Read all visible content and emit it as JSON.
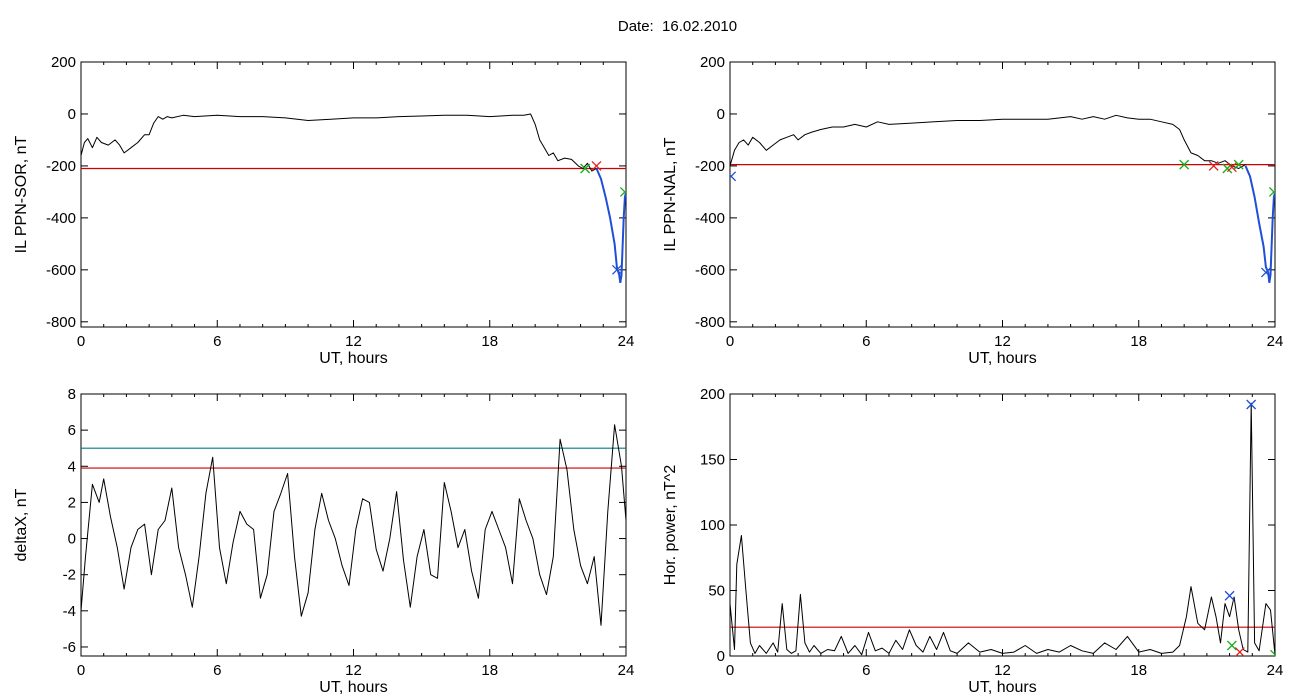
{
  "figure": {
    "title": "Date:  16.02.2010"
  },
  "colors": {
    "trace": "#000000",
    "threshold_red": "#cc0000",
    "threshold_teal": "#007c8c",
    "highlight_blue": "#1f4fd8",
    "marker_red": "#e02020",
    "marker_green": "#16b016",
    "marker_blue": "#1f4fd8"
  },
  "chart_data": [
    {
      "type": "line",
      "panel": "top-left",
      "xlabel": "UT, hours",
      "ylabel": "IL PPN-SOR, nT",
      "xlim": [
        0,
        24
      ],
      "ylim": [
        -820,
        200
      ],
      "xticks": [
        0,
        6,
        12,
        18,
        24
      ],
      "xtick_labels": [
        "0",
        "6",
        "12",
        "18",
        "24"
      ],
      "yticks": [
        200,
        0,
        -200,
        -400,
        -600,
        -800
      ],
      "ytick_labels": [
        "200",
        "0",
        "-200",
        "-400",
        "-600",
        "-800"
      ],
      "thresholds": [
        {
          "y": -210,
          "color": "red"
        }
      ],
      "series": [
        {
          "x": [
            0,
            0.15,
            0.3,
            0.5,
            0.7,
            0.9,
            1.2,
            1.5,
            1.7,
            1.9,
            2.2,
            2.5,
            2.8,
            3.0,
            3.2,
            3.4,
            3.6,
            3.8,
            4.0,
            4.5,
            5,
            6,
            7,
            8,
            9,
            10,
            11,
            12,
            13,
            14,
            15,
            16,
            17,
            18,
            19,
            19.5,
            19.8,
            20.0,
            20.2,
            20.4,
            20.6,
            20.8,
            21.0,
            21.3,
            21.6,
            21.9,
            22.1,
            22.3,
            22.5,
            22.7
          ],
          "y": [
            -160,
            -110,
            -95,
            -130,
            -90,
            -110,
            -120,
            -100,
            -120,
            -150,
            -130,
            -110,
            -80,
            -80,
            -35,
            -10,
            -20,
            -10,
            -15,
            -5,
            -10,
            -5,
            -10,
            -10,
            -15,
            -25,
            -20,
            -15,
            -15,
            -10,
            -8,
            -5,
            -5,
            -10,
            -5,
            -5,
            0,
            -40,
            -100,
            -130,
            -160,
            -150,
            -180,
            -170,
            -175,
            -200,
            -210,
            -190,
            -220,
            -210
          ]
        }
      ],
      "highlight": {
        "x": [
          22.7,
          22.9,
          23.1,
          23.3,
          23.5,
          23.6,
          23.7,
          23.75,
          23.8,
          23.9,
          23.95,
          24.0
        ],
        "y": [
          -210,
          -250,
          -320,
          -400,
          -500,
          -590,
          -620,
          -650,
          -620,
          -400,
          -320,
          -300
        ]
      },
      "markers": [
        {
          "x": 22.2,
          "y": -210,
          "color": "green"
        },
        {
          "x": 22.7,
          "y": -200,
          "color": "red"
        },
        {
          "x": 23.95,
          "y": -300,
          "color": "green"
        },
        {
          "x": 23.6,
          "y": -600,
          "color": "blue"
        }
      ]
    },
    {
      "type": "line",
      "panel": "top-right",
      "xlabel": "UT, hours",
      "ylabel": "IL PPN-NAL, nT",
      "xlim": [
        0,
        24
      ],
      "ylim": [
        -820,
        200
      ],
      "xticks": [
        0,
        6,
        12,
        18,
        24
      ],
      "xtick_labels": [
        "0",
        "6",
        "12",
        "18",
        "24"
      ],
      "yticks": [
        200,
        0,
        -200,
        -400,
        -600,
        -800
      ],
      "ytick_labels": [
        "200",
        "0",
        "-200",
        "-400",
        "-600",
        "-800"
      ],
      "thresholds": [
        {
          "y": -195,
          "color": "red"
        }
      ],
      "series": [
        {
          "x": [
            0,
            0.2,
            0.4,
            0.6,
            0.8,
            1.0,
            1.3,
            1.6,
            1.9,
            2.2,
            2.5,
            2.8,
            3.0,
            3.3,
            3.6,
            4.0,
            4.5,
            5.0,
            5.5,
            6.0,
            6.5,
            7.0,
            8.0,
            9.0,
            10.0,
            11.0,
            12.0,
            13.0,
            14.0,
            15.0,
            15.5,
            16.0,
            16.5,
            17.0,
            17.5,
            18.0,
            18.5,
            19.0,
            19.5,
            19.8,
            20.0,
            20.3,
            20.6,
            20.9,
            21.2,
            21.5,
            21.8,
            22.1,
            22.4,
            22.7
          ],
          "y": [
            -200,
            -140,
            -110,
            -100,
            -120,
            -90,
            -110,
            -140,
            -120,
            -100,
            -90,
            -80,
            -100,
            -80,
            -70,
            -60,
            -50,
            -50,
            -40,
            -50,
            -30,
            -40,
            -35,
            -30,
            -25,
            -25,
            -20,
            -20,
            -20,
            -10,
            -20,
            -10,
            -20,
            -5,
            -15,
            -20,
            -20,
            -30,
            -40,
            -60,
            -100,
            -150,
            -160,
            -180,
            -180,
            -190,
            -180,
            -200,
            -210,
            -195
          ]
        }
      ],
      "highlight": {
        "x": [
          22.7,
          22.9,
          23.1,
          23.3,
          23.5,
          23.6,
          23.7,
          23.75,
          23.8,
          23.9,
          23.95,
          24.0
        ],
        "y": [
          -200,
          -240,
          -320,
          -420,
          -510,
          -590,
          -610,
          -650,
          -620,
          -400,
          -320,
          -300
        ]
      },
      "markers": [
        {
          "x": 0.05,
          "y": -240,
          "color": "blue"
        },
        {
          "x": 20.0,
          "y": -195,
          "color": "green"
        },
        {
          "x": 21.3,
          "y": -200,
          "color": "red"
        },
        {
          "x": 21.9,
          "y": -210,
          "color": "green"
        },
        {
          "x": 22.1,
          "y": -205,
          "color": "red"
        },
        {
          "x": 22.4,
          "y": -195,
          "color": "green"
        },
        {
          "x": 23.95,
          "y": -300,
          "color": "green"
        },
        {
          "x": 23.6,
          "y": -610,
          "color": "blue"
        }
      ]
    },
    {
      "type": "line",
      "panel": "bottom-left",
      "xlabel": "UT, hours",
      "ylabel": "deltaX, nT",
      "xlim": [
        0,
        24
      ],
      "ylim": [
        -6.5,
        8
      ],
      "xticks": [
        0,
        6,
        12,
        18,
        24
      ],
      "xtick_labels": [
        "0",
        "6",
        "12",
        "18",
        "24"
      ],
      "yticks": [
        8,
        6,
        4,
        2,
        0,
        -2,
        -4,
        -6
      ],
      "ytick_labels": [
        "8",
        "6",
        "4",
        "2",
        "0",
        "-2",
        "-4",
        "-6"
      ],
      "thresholds": [
        {
          "y": 5,
          "color": "teal"
        },
        {
          "y": 3.9,
          "color": "red"
        }
      ],
      "series": [
        {
          "x": [
            0,
            0.2,
            0.5,
            0.8,
            1.0,
            1.3,
            1.6,
            1.9,
            2.2,
            2.5,
            2.8,
            3.1,
            3.4,
            3.7,
            4.0,
            4.3,
            4.6,
            4.9,
            5.2,
            5.5,
            5.8,
            6.1,
            6.4,
            6.7,
            7.0,
            7.3,
            7.6,
            7.9,
            8.2,
            8.5,
            8.8,
            9.1,
            9.4,
            9.7,
            10.0,
            10.3,
            10.6,
            10.9,
            11.2,
            11.5,
            11.8,
            12.1,
            12.4,
            12.7,
            13.0,
            13.3,
            13.6,
            13.9,
            14.2,
            14.5,
            14.8,
            15.1,
            15.4,
            15.7,
            16.0,
            16.3,
            16.6,
            16.9,
            17.2,
            17.5,
            17.8,
            18.1,
            18.4,
            18.7,
            19.0,
            19.3,
            19.6,
            19.9,
            20.2,
            20.5,
            20.8,
            21.1,
            21.4,
            21.7,
            22.0,
            22.3,
            22.6,
            22.9,
            23.2,
            23.5,
            23.8,
            24.0
          ],
          "y": [
            -4,
            -1,
            3.0,
            2.0,
            3.3,
            1.2,
            -0.5,
            -2.8,
            -0.5,
            0.5,
            0.8,
            -2.0,
            0.5,
            1.0,
            2.8,
            -0.5,
            -2.0,
            -3.8,
            -1.0,
            2.5,
            4.5,
            -0.5,
            -2.5,
            -0.2,
            1.5,
            0.8,
            0.5,
            -3.3,
            -2.0,
            1.5,
            2.5,
            3.6,
            -1.0,
            -4.3,
            -3.0,
            0.5,
            2.5,
            1.0,
            0.0,
            -1.5,
            -2.6,
            0.5,
            2.2,
            2.0,
            -0.6,
            -1.8,
            0.0,
            2.6,
            -1.2,
            -3.8,
            -1.0,
            0.5,
            -2.0,
            -2.2,
            3.1,
            1.5,
            -0.5,
            0.5,
            -1.8,
            -3.3,
            0.5,
            1.5,
            0.5,
            -0.5,
            -2.5,
            2.2,
            1.0,
            0.0,
            -2.0,
            -3.1,
            -1.0,
            5.5,
            3.8,
            0.5,
            -1.5,
            -2.5,
            -1.0,
            -4.8,
            1.5,
            6.3,
            4.0,
            1.0
          ]
        }
      ]
    },
    {
      "type": "line",
      "panel": "bottom-right",
      "xlabel": "UT, hours",
      "ylabel": "Hor. power, nT^2",
      "xlim": [
        0,
        24
      ],
      "ylim": [
        0,
        200
      ],
      "xticks": [
        0,
        6,
        12,
        18,
        24
      ],
      "xtick_labels": [
        "0",
        "6",
        "12",
        "18",
        "24"
      ],
      "yticks": [
        0,
        50,
        100,
        150,
        200
      ],
      "ytick_labels": [
        "0",
        "50",
        "100",
        "150",
        "200"
      ],
      "thresholds": [
        {
          "y": 22,
          "color": "red"
        }
      ],
      "series": [
        {
          "x": [
            0,
            0.2,
            0.3,
            0.5,
            0.7,
            0.9,
            1.1,
            1.3,
            1.6,
            1.9,
            2.1,
            2.3,
            2.5,
            2.7,
            2.9,
            3.1,
            3.3,
            3.5,
            3.7,
            4.0,
            4.3,
            4.6,
            4.9,
            5.2,
            5.5,
            5.8,
            6.1,
            6.4,
            6.7,
            7.0,
            7.3,
            7.6,
            7.9,
            8.2,
            8.5,
            8.8,
            9.1,
            9.4,
            9.7,
            10.0,
            10.5,
            11.0,
            11.5,
            12.0,
            12.5,
            13.0,
            13.5,
            14.0,
            14.5,
            15.0,
            15.5,
            16.0,
            16.5,
            17.0,
            17.5,
            18.0,
            18.5,
            19.0,
            19.5,
            19.8,
            20.1,
            20.3,
            20.6,
            20.9,
            21.2,
            21.4,
            21.6,
            21.8,
            22.0,
            22.2,
            22.4,
            22.6,
            22.8,
            22.95,
            23.1,
            23.3,
            23.6,
            23.8,
            24.0
          ],
          "y": [
            40,
            5,
            70,
            92,
            50,
            10,
            2,
            8,
            2,
            10,
            3,
            40,
            5,
            2,
            4,
            47,
            10,
            3,
            8,
            2,
            5,
            4,
            15,
            2,
            8,
            1,
            18,
            4,
            6,
            2,
            12,
            5,
            20,
            8,
            3,
            15,
            5,
            18,
            4,
            2,
            10,
            3,
            5,
            2,
            3,
            8,
            2,
            5,
            3,
            8,
            4,
            2,
            10,
            5,
            15,
            3,
            5,
            2,
            3,
            8,
            30,
            53,
            25,
            20,
            45,
            30,
            10,
            40,
            30,
            45,
            20,
            5,
            3,
            193,
            10,
            4,
            40,
            35,
            1
          ]
        }
      ],
      "markers": [
        {
          "x": 22.95,
          "y": 192,
          "color": "blue"
        },
        {
          "x": 22.0,
          "y": 46,
          "color": "blue"
        },
        {
          "x": 22.1,
          "y": 8,
          "color": "green"
        },
        {
          "x": 22.45,
          "y": 3,
          "color": "red"
        },
        {
          "x": 24.0,
          "y": 1,
          "color": "green"
        }
      ]
    }
  ]
}
